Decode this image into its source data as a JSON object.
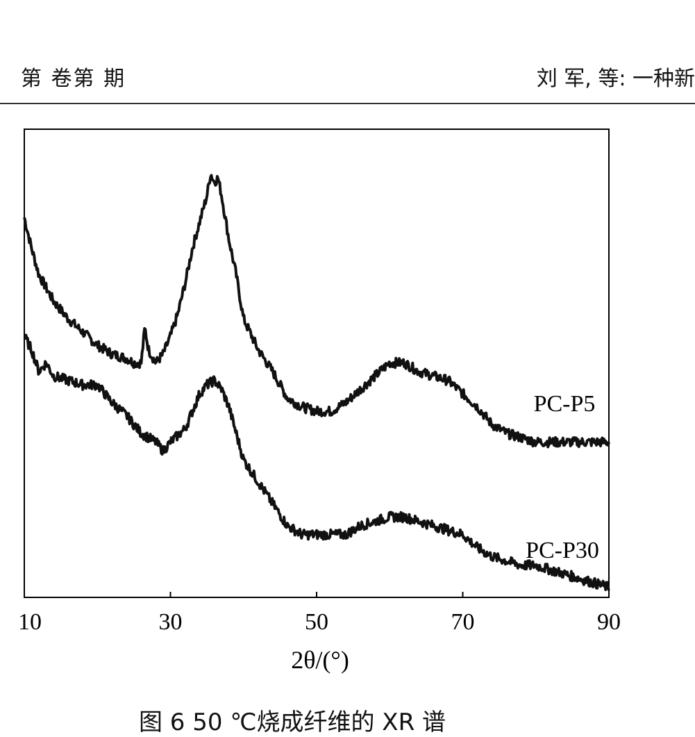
{
  "header": {
    "left": "第    卷第  期",
    "right": "刘  军, 等: 一种新"
  },
  "caption": "图 6    50 ℃烧成纤维的 XR  谱",
  "chart_data": {
    "type": "line",
    "title": "",
    "xlabel": "2θ/(°)",
    "ylabel": "",
    "xlim": [
      10,
      90
    ],
    "ylim": [
      0,
      1
    ],
    "xticks": [
      10,
      30,
      50,
      70,
      90
    ],
    "grid": false,
    "legend": "none",
    "line_color": "#111111",
    "series": [
      {
        "name": "PC-P5",
        "x": [
          10,
          11,
          12,
          14,
          16,
          18,
          20,
          22,
          24,
          25,
          26,
          26.5,
          27,
          28,
          29,
          30,
          31,
          32,
          33,
          34,
          35,
          35.5,
          36,
          36.5,
          37,
          38,
          39,
          40,
          42,
          44,
          46,
          48,
          50,
          52,
          54,
          56,
          58,
          60,
          62,
          64,
          66,
          68,
          70,
          72,
          74,
          76,
          78,
          80,
          82,
          84,
          86,
          88,
          90
        ],
        "y": [
          0.85,
          0.78,
          0.72,
          0.66,
          0.62,
          0.59,
          0.56,
          0.54,
          0.53,
          0.52,
          0.52,
          0.6,
          0.55,
          0.52,
          0.54,
          0.58,
          0.63,
          0.7,
          0.78,
          0.84,
          0.9,
          0.95,
          0.93,
          0.94,
          0.9,
          0.8,
          0.72,
          0.62,
          0.55,
          0.5,
          0.44,
          0.42,
          0.41,
          0.41,
          0.43,
          0.46,
          0.49,
          0.52,
          0.52,
          0.5,
          0.49,
          0.48,
          0.45,
          0.42,
          0.38,
          0.36,
          0.35,
          0.34,
          0.34,
          0.34,
          0.34,
          0.34,
          0.34
        ]
      },
      {
        "name": "PC-P30",
        "x": [
          10,
          11,
          12,
          13,
          14,
          16,
          18,
          20,
          22,
          24,
          26,
          28,
          29,
          30,
          32,
          34,
          35,
          36,
          37,
          38,
          40,
          42,
          44,
          46,
          48,
          50,
          52,
          54,
          56,
          58,
          60,
          62,
          64,
          66,
          68,
          70,
          72,
          74,
          76,
          78,
          80,
          82,
          84,
          86,
          88,
          90
        ],
        "y": [
          0.58,
          0.55,
          0.5,
          0.52,
          0.49,
          0.48,
          0.47,
          0.47,
          0.43,
          0.4,
          0.36,
          0.34,
          0.32,
          0.34,
          0.37,
          0.45,
          0.47,
          0.48,
          0.46,
          0.42,
          0.3,
          0.25,
          0.2,
          0.15,
          0.13,
          0.13,
          0.13,
          0.13,
          0.15,
          0.16,
          0.17,
          0.17,
          0.16,
          0.15,
          0.14,
          0.13,
          0.1,
          0.08,
          0.07,
          0.06,
          0.06,
          0.05,
          0.04,
          0.03,
          0.02,
          0.01
        ]
      }
    ]
  }
}
